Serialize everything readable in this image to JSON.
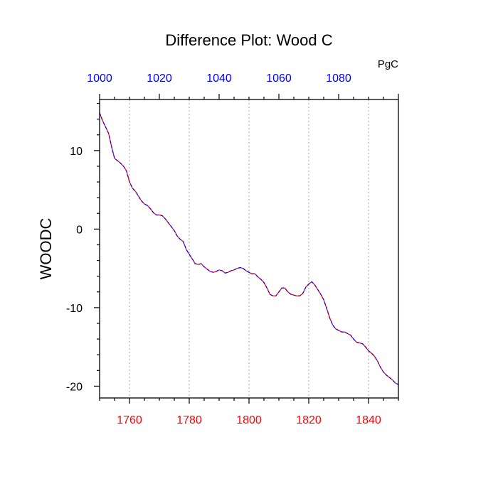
{
  "chart_data": {
    "type": "line",
    "title": "Difference Plot: Wood C",
    "ylabel": "WOODC",
    "top_axis_unit": "PgC",
    "xlim": [
      1750,
      1850
    ],
    "ylim": [
      -21.5,
      16.5
    ],
    "x_ticks": [
      "1760",
      "1780",
      "1800",
      "1820",
      "1840"
    ],
    "x_tick_values": [
      1760,
      1780,
      1800,
      1820,
      1840
    ],
    "x_tick_color": "#ff0000",
    "y_ticks": [
      "10",
      "0",
      "-10",
      "-20"
    ],
    "y_tick_values": [
      10,
      0,
      -10,
      -20
    ],
    "top_xlim": [
      1000,
      1100
    ],
    "top_ticks": [
      "1000",
      "1020",
      "1040",
      "1060",
      "1080"
    ],
    "top_tick_values": [
      1000,
      1020,
      1040,
      1060,
      1080
    ],
    "top_tick_color": "#0000ff",
    "grid": "vertical dotted at bottom major ticks",
    "series": [
      {
        "line_colors": [
          "#ff0000",
          "#0000ff"
        ],
        "line_style": "dashed",
        "x": [
          1750,
          1751,
          1752,
          1753,
          1754,
          1755,
          1756,
          1757,
          1758,
          1759,
          1760,
          1761,
          1762,
          1763,
          1764,
          1765,
          1766,
          1767,
          1768,
          1769,
          1770,
          1771,
          1772,
          1773,
          1774,
          1775,
          1776,
          1777,
          1778,
          1779,
          1780,
          1781,
          1782,
          1783,
          1784,
          1785,
          1786,
          1787,
          1788,
          1789,
          1790,
          1791,
          1792,
          1793,
          1794,
          1795,
          1796,
          1797,
          1798,
          1799,
          1800,
          1801,
          1802,
          1803,
          1804,
          1805,
          1806,
          1807,
          1808,
          1809,
          1810,
          1811,
          1812,
          1813,
          1814,
          1815,
          1816,
          1817,
          1818,
          1819,
          1820,
          1821,
          1822,
          1823,
          1824,
          1825,
          1826,
          1827,
          1828,
          1829,
          1830,
          1831,
          1832,
          1833,
          1834,
          1835,
          1836,
          1837,
          1838,
          1839,
          1840,
          1841,
          1842,
          1843,
          1844,
          1845,
          1846,
          1847,
          1848,
          1849,
          1850
        ],
        "values": [
          14.8,
          13.8,
          13.0,
          12.2,
          10.5,
          9.0,
          8.7,
          8.4,
          8.0,
          7.4,
          6.0,
          5.2,
          4.8,
          4.2,
          3.6,
          3.2,
          3.0,
          2.6,
          2.1,
          1.8,
          1.8,
          1.7,
          1.3,
          0.8,
          0.3,
          -0.2,
          -0.9,
          -1.3,
          -1.6,
          -2.6,
          -3.2,
          -3.8,
          -4.4,
          -4.5,
          -4.4,
          -4.8,
          -5.1,
          -5.4,
          -5.5,
          -5.4,
          -5.2,
          -5.3,
          -5.6,
          -5.5,
          -5.3,
          -5.2,
          -5.0,
          -4.9,
          -5.0,
          -5.3,
          -5.5,
          -5.7,
          -5.7,
          -6.1,
          -6.4,
          -6.8,
          -7.5,
          -8.3,
          -8.5,
          -8.5,
          -8.0,
          -7.5,
          -7.5,
          -8.0,
          -8.3,
          -8.4,
          -8.5,
          -8.5,
          -8.2,
          -7.4,
          -7.0,
          -6.7,
          -7.1,
          -7.7,
          -8.3,
          -9.0,
          -10.1,
          -11.3,
          -12.2,
          -12.7,
          -12.9,
          -13.1,
          -13.1,
          -13.3,
          -13.5,
          -14.0,
          -14.4,
          -14.5,
          -14.6,
          -15.0,
          -15.5,
          -15.8,
          -16.2,
          -16.8,
          -17.6,
          -18.2,
          -18.6,
          -18.9,
          -19.2,
          -19.6,
          -19.8
        ]
      }
    ]
  }
}
